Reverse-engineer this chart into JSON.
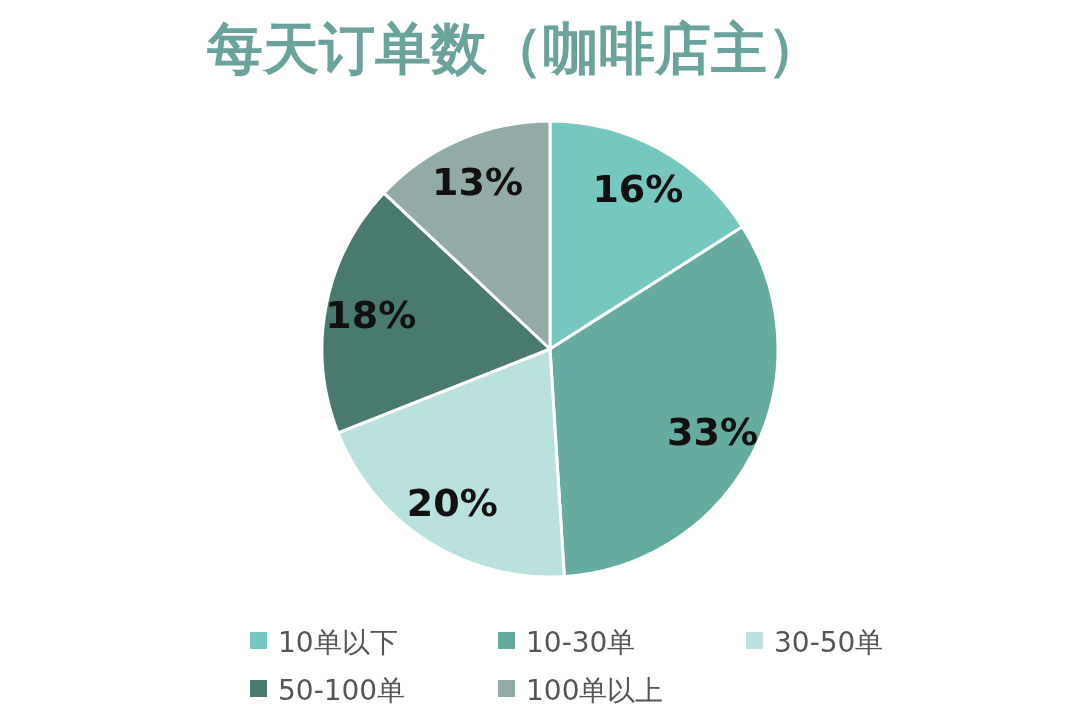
{
  "chart_data": {
    "type": "pie",
    "title": "每天订单数（咖啡店主）",
    "categories": [
      "10单以下",
      "10-30单",
      "30-50单",
      "50-100单",
      "100单以上"
    ],
    "values": [
      16,
      33,
      20,
      18,
      13
    ],
    "colors": [
      "#76c7c0",
      "#66ab9f",
      "#b9e1dd",
      "#4a7a6f",
      "#93aba6"
    ],
    "value_labels": [
      "16%",
      "33%",
      "20%",
      "18%",
      "13%"
    ],
    "legend": "bottom"
  }
}
